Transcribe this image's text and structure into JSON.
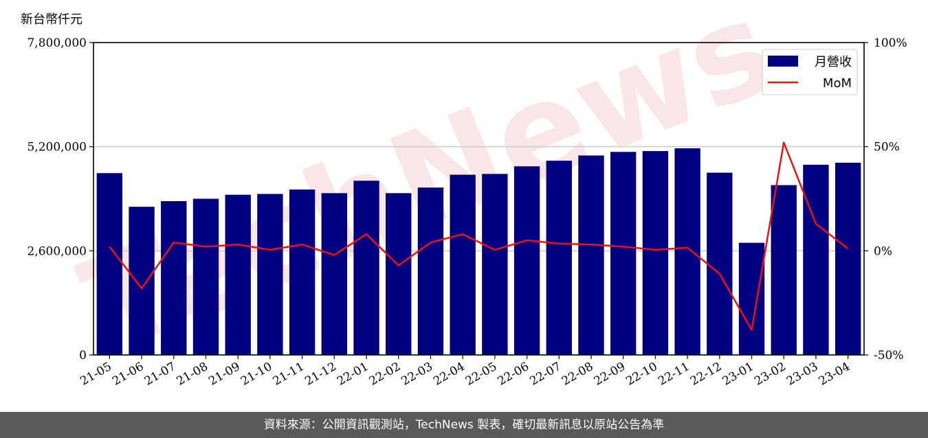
{
  "unit_label": "新台幣仟元",
  "footer": "資料來源：公開資訊觀測站，TechNews 製表，確切最新訊息以原站公告為準",
  "watermark": "TechNews",
  "colors": {
    "bar": "#000080",
    "line": "#ee1111",
    "grid": "#cccccc",
    "watermark": "#f2c9c9"
  },
  "chart_data": {
    "type": "bar",
    "categories": [
      "21-05",
      "21-06",
      "21-07",
      "21-08",
      "21-09",
      "21-10",
      "21-11",
      "21-12",
      "22-01",
      "22-02",
      "22-03",
      "22-04",
      "22-05",
      "22-06",
      "22-07",
      "22-08",
      "22-09",
      "22-10",
      "22-11",
      "22-12",
      "23-01",
      "23-02",
      "23-03",
      "23-04"
    ],
    "series": [
      {
        "name": "月營收",
        "type": "bar",
        "axis": "left",
        "values": [
          4540000,
          3700000,
          3840000,
          3900000,
          4000000,
          4020000,
          4130000,
          4040000,
          4350000,
          4040000,
          4180000,
          4500000,
          4520000,
          4710000,
          4850000,
          4980000,
          5070000,
          5090000,
          5160000,
          4550000,
          2800000,
          4240000,
          4750000,
          4800000
        ]
      },
      {
        "name": "MoM",
        "type": "line",
        "axis": "right",
        "values": [
          2,
          -18,
          4,
          2,
          3,
          0.5,
          3,
          -2,
          8,
          -7,
          4,
          8,
          0.5,
          5,
          3.5,
          3,
          2,
          0.5,
          1.5,
          -11,
          -38,
          52,
          13,
          1
        ]
      }
    ],
    "left_axis": {
      "ylim": [
        0,
        7800000
      ],
      "ticks": [
        0,
        2600000,
        5200000,
        7800000
      ],
      "tick_labels": [
        "0",
        "2,600,000",
        "5,200,000",
        "7,800,000"
      ]
    },
    "right_axis": {
      "ylim": [
        -50,
        100
      ],
      "ticks": [
        -50,
        0,
        50,
        100
      ],
      "tick_labels": [
        "-50%",
        "0%",
        "50%",
        "100%"
      ]
    },
    "grid": "horizontal",
    "legend_position": "top-right"
  }
}
